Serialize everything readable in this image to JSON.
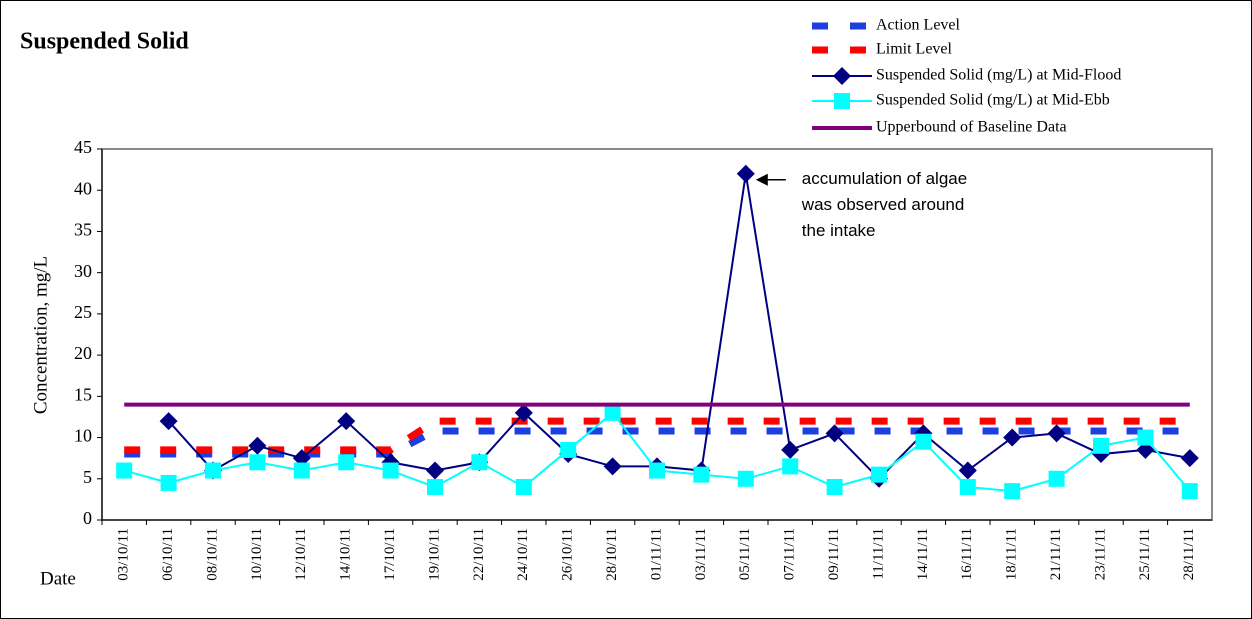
{
  "chart_data": {
    "type": "line",
    "title": "Suspended Solid",
    "ylabel": "Concentration, mg/L",
    "xlabel": "Date",
    "annotation": [
      "accumulation of algae",
      "was observed around",
      "the intake"
    ],
    "annotation_at": {
      "series": 2,
      "index": 14
    },
    "categories": [
      "03/10/11",
      "06/10/11",
      "08/10/11",
      "10/10/11",
      "12/10/11",
      "14/10/11",
      "17/10/11",
      "19/10/11",
      "22/10/11",
      "24/10/11",
      "26/10/11",
      "28/10/11",
      "01/11/11",
      "03/11/11",
      "05/11/11",
      "07/11/11",
      "09/11/11",
      "11/11/11",
      "14/11/11",
      "16/11/11",
      "18/11/11",
      "21/11/11",
      "23/11/11",
      "25/11/11",
      "28/11/11"
    ],
    "series": [
      {
        "name": "Action Level",
        "color": "#1c3fe0",
        "dashed": true,
        "marker": "none",
        "values": [
          8,
          8,
          8,
          8,
          8,
          8,
          8,
          10.8,
          10.8,
          10.8,
          10.8,
          10.8,
          10.8,
          10.8,
          10.8,
          10.8,
          10.8,
          10.8,
          10.8,
          10.8,
          10.8,
          10.8,
          10.8,
          10.8,
          10.8
        ]
      },
      {
        "name": "Limit Level",
        "color": "#ff0000",
        "dashed": true,
        "marker": "none",
        "values": [
          8.5,
          8.5,
          8.5,
          8.5,
          8.5,
          8.5,
          8.5,
          12,
          12,
          12,
          12,
          12,
          12,
          12,
          12,
          12,
          12,
          12,
          12,
          12,
          12,
          12,
          12,
          12,
          12
        ]
      },
      {
        "name": "Suspended Solid (mg/L) at Mid-Flood",
        "color": "#000080",
        "dashed": false,
        "marker": "diamond",
        "values": [
          null,
          12,
          6,
          9,
          7.5,
          12,
          7,
          6,
          7,
          13,
          8,
          6.5,
          6.5,
          6,
          42,
          8.5,
          10.5,
          5,
          10.5,
          6,
          10,
          10.5,
          8,
          8.5,
          7.5
        ]
      },
      {
        "name": "Suspended Solid (mg/L) at Mid-Ebb",
        "color": "#00ffff",
        "dashed": false,
        "marker": "square",
        "values": [
          6,
          4.5,
          6,
          7,
          6,
          7,
          6,
          4,
          7,
          4,
          8.5,
          13,
          6,
          5.5,
          5,
          6.5,
          4,
          5.5,
          9.5,
          4,
          3.5,
          5,
          9,
          10,
          3.5
        ]
      },
      {
        "name": "Upperbound of Baseline Data",
        "color": "#800080",
        "dashed": false,
        "marker": "none",
        "values": [
          14,
          14,
          14,
          14,
          14,
          14,
          14,
          14,
          14,
          14,
          14,
          14,
          14,
          14,
          14,
          14,
          14,
          14,
          14,
          14,
          14,
          14,
          14,
          14,
          14
        ]
      }
    ],
    "ylim": [
      0,
      45
    ],
    "yticks": [
      0,
      5,
      10,
      15,
      20,
      25,
      30,
      35,
      40,
      45
    ],
    "grid": false
  }
}
